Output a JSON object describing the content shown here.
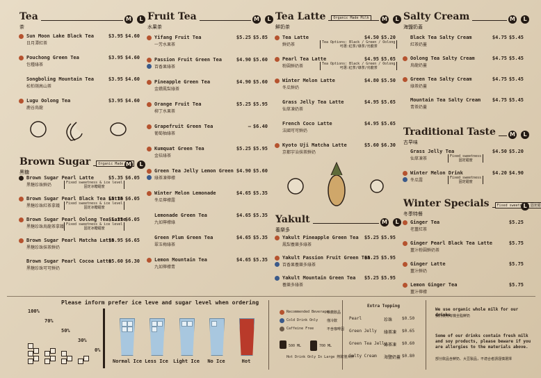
{
  "sections": [
    {
      "title": "Tea",
      "subtitle": "茶",
      "sizes": [
        "M",
        "L"
      ],
      "items": [
        {
          "name": "Sun Moon Lake Black Tea",
          "cn": "日月潭紅茶",
          "prices": [
            "$3.95",
            "$4.60"
          ]
        },
        {
          "name": "Pouchong Green Tea",
          "cn": "包種綠茶",
          "prices": [
            "$3.95",
            "$4.60"
          ]
        },
        {
          "name": "Songboling Mountain Tea",
          "cn": "松柏嶺高山茶",
          "prices": [
            "$3.95",
            "$4.60"
          ]
        },
        {
          "name": "Lugu Oolong Tea",
          "cn": "鹿谷烏龍",
          "prices": [
            "$3.95",
            "$4.60"
          ]
        }
      ]
    },
    {
      "title": "Brown Sugar",
      "subtitle": "黑糖",
      "tag": "Organic Made 有機",
      "sizes": [
        "M",
        "L"
      ],
      "items": [
        {
          "name": "Brown Sugar Pearl Latte",
          "cn": "黑糖珍珠鮮奶",
          "prices": [
            "$5.35",
            "$6.05"
          ],
          "note": "Fixed sweetness & ice level",
          "note_cn": "固定冰糖甜度"
        },
        {
          "name": "Brown Sugar Pearl Black Tea Latte",
          "cn": "黑糖珍珠紅茶拿鐵",
          "prices": [
            "$5.35",
            "$6.05"
          ],
          "note": "Fixed sweetness & ice level",
          "note_cn": "固定冰糖甜度"
        },
        {
          "name": "Brown Sugar Pearl Oolong Tea Latte",
          "cn": "黑糖珍珠烏龍茶拿鐵",
          "prices": [
            "$5.35",
            "$6.05"
          ],
          "note": "Fixed sweetness & ice level",
          "note_cn": "固定冰糖甜度"
        },
        {
          "name": "Brown Sugar Pearl Matcha Latte",
          "cn": "黑糖珍珠抹茶鮮奶",
          "prices": [
            "$5.95",
            "$6.65"
          ]
        },
        {
          "name": "Brown Sugar Pearl Cocoa Latte",
          "cn": "黑糖珍珠可可鮮奶",
          "prices": [
            "$5.60",
            "$6.30"
          ]
        }
      ]
    },
    {
      "title": "Fruit Tea",
      "subtitle": "水果茶",
      "sizes": [
        "M",
        "L"
      ],
      "items": [
        {
          "name": "Yifang Fruit Tea",
          "cn": "一芳水果茶",
          "prices": [
            "$5.25",
            "$5.85"
          ]
        },
        {
          "name": "Passion Fruit Green Tea",
          "cn": "百香果綠茶",
          "prices": [
            "$4.90",
            "$5.60"
          ]
        },
        {
          "name": "Pineapple Green Tea",
          "cn": "金鑽鳳梨綠茶",
          "prices": [
            "$4.90",
            "$5.60"
          ]
        },
        {
          "name": "Orange Fruit Tea",
          "cn": "柳丁水果茶",
          "prices": [
            "$5.25",
            "$5.95"
          ]
        },
        {
          "name": "Grapefruit Green Tea",
          "cn": "葡萄柚綠茶",
          "prices": [
            "—",
            "$6.40"
          ]
        },
        {
          "name": "Kumquat Green Tea",
          "cn": "金桔綠茶",
          "prices": [
            "$5.25",
            "$5.95"
          ]
        },
        {
          "name": "Green Tea Jelly Lemon Green",
          "cn": "綠茶凍檸檬",
          "prices": [
            "$4.90",
            "$5.60"
          ]
        },
        {
          "name": "Winter Melon Lemonade",
          "cn": "冬瓜檸檬露",
          "prices": [
            "$4.65",
            "$5.35"
          ]
        },
        {
          "name": "Lemonade Green Tea",
          "cn": "九如檸檬綠",
          "prices": [
            "$4.65",
            "$5.35"
          ]
        },
        {
          "name": "Green Plum Green Tea",
          "cn": "翠玉梅綠茶",
          "prices": [
            "$4.65",
            "$5.35"
          ]
        },
        {
          "name": "Lemon Mountain Tea",
          "cn": "九如檸檬青",
          "prices": [
            "$4.65",
            "$5.35"
          ]
        }
      ]
    },
    {
      "title": "Tea Latte",
      "subtitle": "鮮奶茶",
      "tag": "Organic Made Milk",
      "sizes": [
        "M",
        "L"
      ],
      "items": [
        {
          "name": "Tea Latte",
          "cn": "鮮奶茶",
          "prices": [
            "$4.50",
            "$5.20"
          ],
          "note": "Tea Options: Black / Green / Oolong",
          "note_cn": "可選:紅茶/綠茶/烏龍茶"
        },
        {
          "name": "Pearl Tea Latte",
          "cn": "粉圓鮮奶茶",
          "prices": [
            "$4.95",
            "$5.65"
          ],
          "note": "Tea Options: Black / Green / Oolong",
          "note_cn": "可選:紅茶/綠茶/烏龍茶"
        },
        {
          "name": "Winter Melon Latte",
          "cn": "冬瓜鮮奶",
          "prices": [
            "$4.80",
            "$5.50"
          ]
        },
        {
          "name": "Grass Jelly Tea Latte",
          "cn": "仙草凍奶茶",
          "prices": [
            "$4.95",
            "$5.65"
          ]
        },
        {
          "name": "French Coco Latte",
          "cn": "法國可可鮮奶",
          "prices": [
            "$4.95",
            "$5.65"
          ]
        },
        {
          "name": "Kyoto Uji Matcha Latte",
          "cn": "京都宇治抹茶鮮奶",
          "prices": [
            "$5.60",
            "$6.30"
          ]
        }
      ]
    },
    {
      "title": "Yakult",
      "subtitle": "養樂多",
      "sizes": [
        "M",
        "L"
      ],
      "items": [
        {
          "name": "Yakult Pineapple Green Tea",
          "cn": "鳳梨養樂多綠茶",
          "prices": [
            "$5.25",
            "$5.95"
          ]
        },
        {
          "name": "Yakult Passion Fruit Green Tea",
          "cn": "百香果養樂多綠茶",
          "prices": [
            "$5.25",
            "$5.95"
          ]
        },
        {
          "name": "Yakult Mountain Green Tea",
          "cn": "養樂多綠茶",
          "prices": [
            "$5.25",
            "$5.95"
          ]
        }
      ]
    },
    {
      "title": "Salty Cream",
      "subtitle": "海鹽奶蓋",
      "sizes": [
        "M",
        "L"
      ],
      "items": [
        {
          "name": "Black Tea Salty Cream",
          "cn": "紅茶奶蓋",
          "prices": [
            "$4.75",
            "$5.45"
          ]
        },
        {
          "name": "Oolong Tea Salty Cream",
          "cn": "烏龍奶蓋",
          "prices": [
            "$4.75",
            "$5.45"
          ]
        },
        {
          "name": "Green Tea Salty Cream",
          "cn": "綠茶奶蓋",
          "prices": [
            "$4.75",
            "$5.45"
          ]
        },
        {
          "name": "Mountain Tea Salty Cream",
          "cn": "青茶奶蓋",
          "prices": [
            "$4.75",
            "$5.45"
          ]
        }
      ]
    },
    {
      "title": "Traditional Taste",
      "subtitle": "古早味",
      "sizes": [
        "M",
        "L"
      ],
      "items": [
        {
          "name": "Grass Jelly Tea",
          "cn": "仙草凍茶",
          "prices": [
            "$4.50",
            "$5.20"
          ],
          "note": "Fixed sweetness",
          "note_cn": "固定甜度"
        },
        {
          "name": "Winter Melon Drink",
          "cn": "冬瓜露",
          "prices": [
            "$4.20",
            "$4.90"
          ],
          "note": "Fixed sweetness",
          "note_cn": "固定甜度"
        }
      ]
    },
    {
      "title": "Winter Specials",
      "subtitle": "冬季特餐",
      "tag": "Fixed sweetness 固定甜度",
      "sizes": [
        "L"
      ],
      "items": [
        {
          "name": "Ginger Tea",
          "cn": "老薑紅茶",
          "prices": [
            "$5.25"
          ]
        },
        {
          "name": "Ginger Pearl Black Tea Latte",
          "cn": "薑汁粉圓鮮奶茶",
          "prices": [
            "$5.75"
          ]
        },
        {
          "name": "Ginger Latte",
          "cn": "薑汁鮮奶",
          "prices": [
            "$5.75"
          ]
        },
        {
          "name": "Lemon Ginger Tea",
          "cn": "薑汁檸檬",
          "prices": [
            "$5.75"
          ]
        }
      ]
    }
  ],
  "ordering": {
    "instruction": "Please inform prefer ice leve and sugar level when ordering",
    "sugar_levels": [
      "100%",
      "70%",
      "50%",
      "30%",
      "0%"
    ],
    "ice_levels": [
      "Normal Ice",
      "Less Ice",
      "Light Ice",
      "No Ice",
      "Hot"
    ]
  },
  "legend": {
    "items": [
      {
        "label": "Recommended Beverage",
        "cn": "推薦飲品"
      },
      {
        "label": "Cold Drink Only",
        "cn": "僅冷飲"
      },
      {
        "label": "Caffeine Free",
        "cn": "不含咖啡因"
      }
    ],
    "cup_sizes": [
      "500 ML",
      "700 ML"
    ],
    "hot_note": "Hot Drink Only In Large 熱飲僅大杯"
  },
  "extra_topping": {
    "title": "Extra Topping",
    "items": [
      {
        "name": "Pearl",
        "cn": "珍珠",
        "price": "$0.50"
      },
      {
        "name": "Green Jelly",
        "cn": "綠茶凍",
        "price": "$0.65"
      },
      {
        "name": "Green Tea Jelly",
        "cn": "綠茶凍",
        "price": "$0.60"
      },
      {
        "name": "Salty Cream",
        "cn": "海鹽奶蓋",
        "price": "$0.80"
      }
    ]
  },
  "notes": [
    {
      "text": "We use organic whole milk for our drinks",
      "cn": "我們使用有機全脂鮮奶"
    },
    {
      "text": "Some of our drinks contain fresh milk and soy products, please beware if you are allergies to the materials above.",
      "cn": "部分飲品含鮮奶、大豆製品，不適合者請謹慎選擇"
    }
  ]
}
